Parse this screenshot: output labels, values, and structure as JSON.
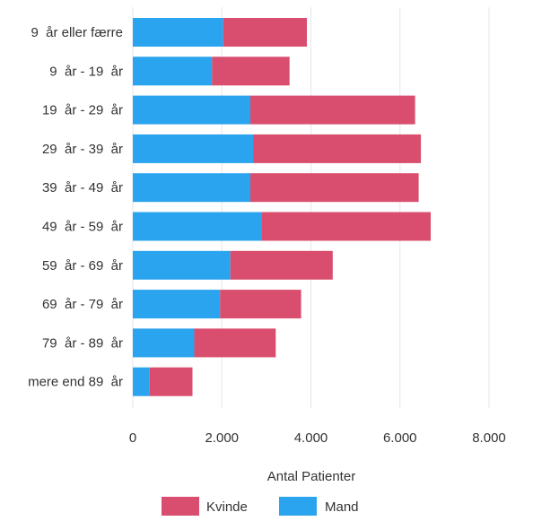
{
  "chart_data": {
    "type": "bar",
    "orientation": "horizontal",
    "stacked": true,
    "categories": [
      "9  år eller færre",
      "9  år - 19  år",
      "19  år - 29  år",
      "29  år - 39  år",
      "39  år - 49  år",
      "49  år - 59  år",
      "59  år - 69  år",
      "69  år - 79  år",
      "79  år - 89  år",
      "mere end 89  år"
    ],
    "series": [
      {
        "name": "Mand",
        "color": "#2aa4ee",
        "values": [
          2030,
          1780,
          2640,
          2710,
          2640,
          2890,
          2190,
          1960,
          1380,
          380
        ]
      },
      {
        "name": "Kvinde",
        "color": "#d94e6e",
        "values": [
          1880,
          1740,
          3700,
          3760,
          3780,
          3800,
          2300,
          1820,
          1830,
          960
        ]
      }
    ],
    "title": "",
    "xlabel": "Antal Patienter",
    "ylabel": "",
    "xlim": [
      0,
      8000
    ],
    "xticks": [
      0,
      2000,
      4000,
      6000,
      8000
    ],
    "xtick_labels": [
      "0",
      "2.000",
      "4.000",
      "6.000",
      "8.000"
    ],
    "grid": "vertical",
    "legend_placement": "bottom-center",
    "legend_order": [
      "Kvinde",
      "Mand"
    ],
    "gridline_color": "#e6e6ee",
    "text_color": "#333333"
  }
}
